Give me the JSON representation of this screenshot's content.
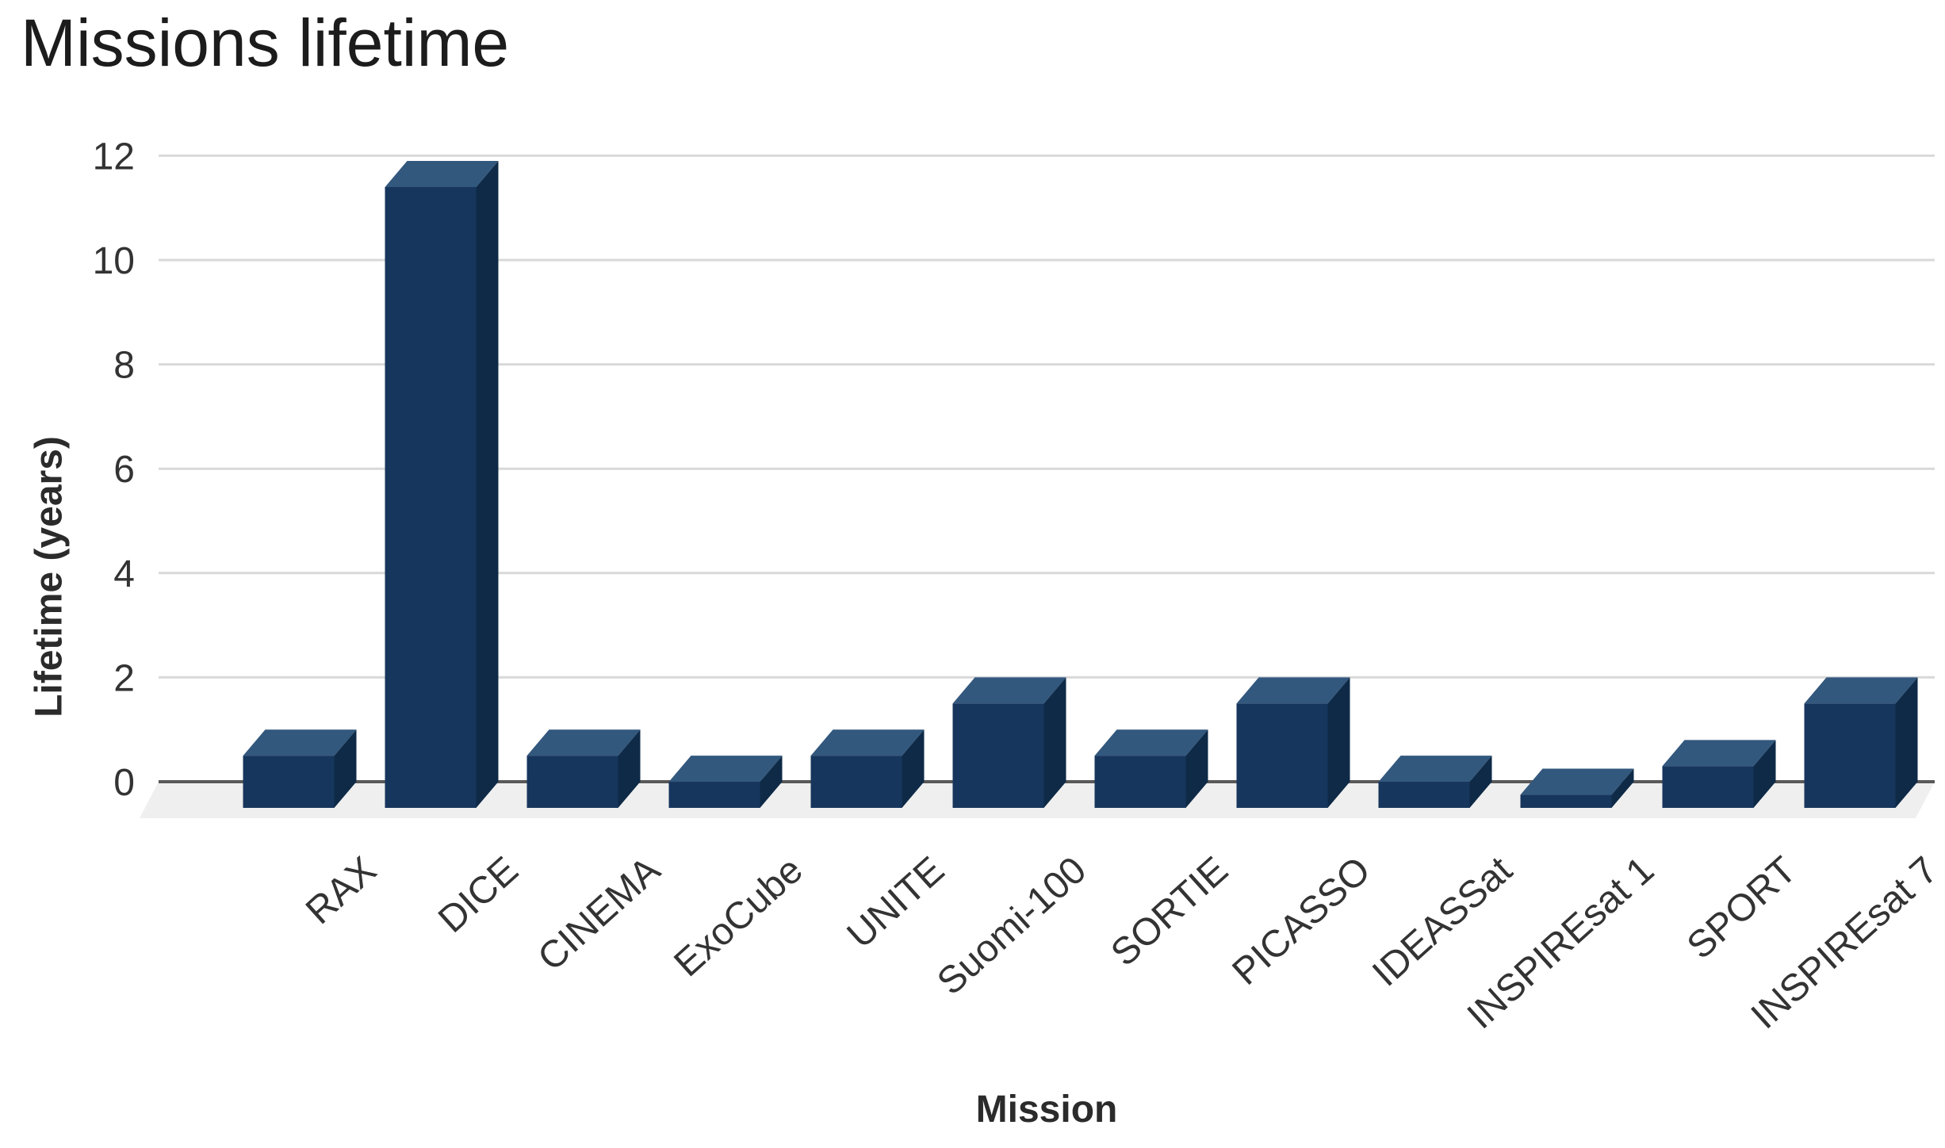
{
  "title": "Missions lifetime",
  "chart_data": {
    "type": "bar",
    "style": "3d-column",
    "title": "Missions lifetime",
    "xlabel": "Mission",
    "ylabel": "Lifetime (years)",
    "categories": [
      "RAX",
      "DICE",
      "CINEMA",
      "ExoCube",
      "UNITE",
      "Suomi-100",
      "SORTIE",
      "PICASSO",
      "IDEASSat",
      "INSPIREsat 1",
      "SPORT",
      "INSPIREsat 7"
    ],
    "values": [
      1.0,
      11.9,
      1.0,
      0.5,
      1.0,
      2.0,
      1.0,
      2.0,
      0.5,
      0.25,
      0.8,
      2.0
    ],
    "ylim": [
      0,
      12
    ],
    "yticks": [
      0,
      2,
      4,
      6,
      8,
      10,
      12
    ],
    "grid": true,
    "legend": false,
    "series_name": "Lifetime (years)",
    "colors": {
      "bar_front": "#17365d",
      "bar_top": "#33587e",
      "bar_side": "#0e2a47",
      "floor": "#efefef",
      "gridline": "#d9d9d9",
      "zero_line": "#595959",
      "tick_text": "#333333",
      "title_text": "#1c1c1c"
    }
  }
}
